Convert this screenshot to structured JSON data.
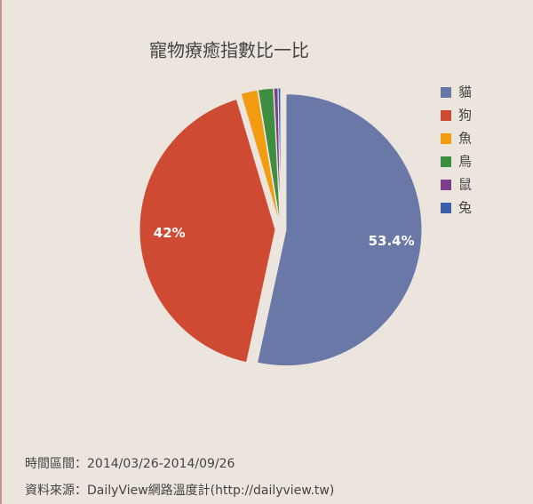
{
  "chart_data": {
    "type": "pie",
    "title": "寵物療癒指數比一比",
    "categories": [
      "貓",
      "狗",
      "魚",
      "鳥",
      "鼠",
      "兔"
    ],
    "values": [
      53.4,
      42,
      2.0,
      1.8,
      0.5,
      0.3
    ],
    "value_labels": [
      "53.4%",
      "42%",
      null,
      null,
      null,
      null
    ],
    "colors": [
      "#6a78a8",
      "#cf4a33",
      "#f39c12",
      "#3e8e41",
      "#7b3f8c",
      "#3a5ea8"
    ],
    "legend": "right",
    "footnotes": [
      "時間區間：2014/03/26-2014/09/26",
      "資料來源：DailyView網路溫度計(http://dailyview.tw)"
    ]
  }
}
